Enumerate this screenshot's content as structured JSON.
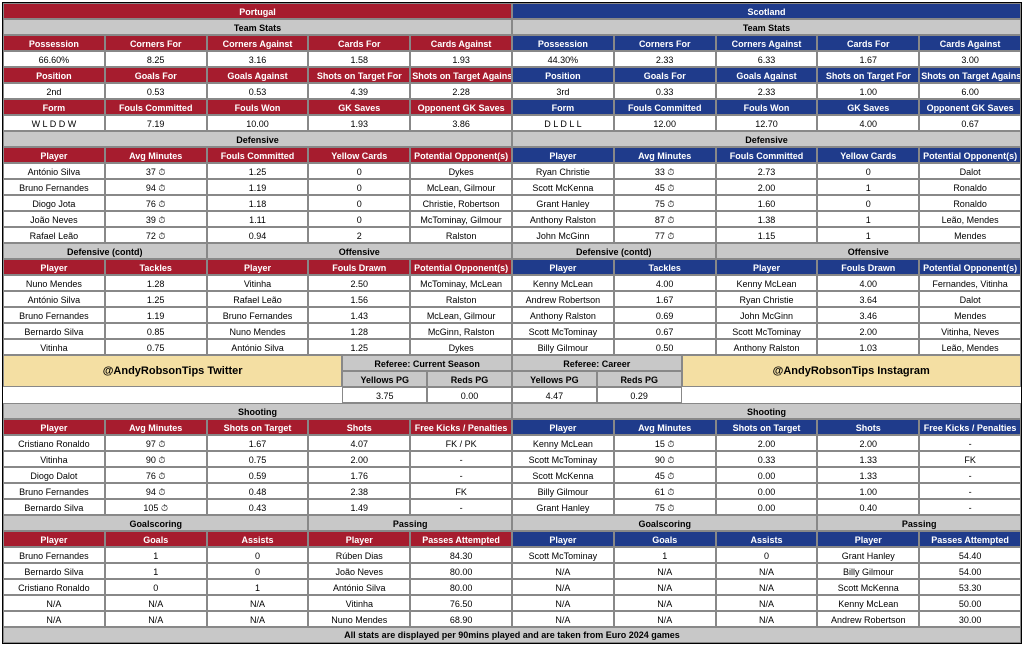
{
  "teamA": {
    "name": "Portugal",
    "color": "#a61c2e",
    "stats": {
      "row1_h": [
        "Possession",
        "Corners For",
        "Corners Against",
        "Cards For",
        "Cards Against"
      ],
      "row1_v": [
        "66.60%",
        "8.25",
        "3.16",
        "1.58",
        "1.93"
      ],
      "row2_h": [
        "Position",
        "Goals For",
        "Goals Against",
        "Shots on Target For",
        "Shots on Target Against"
      ],
      "row2_v": [
        "2nd",
        "0.53",
        "0.53",
        "4.39",
        "2.28"
      ],
      "row3_h": [
        "Form",
        "Fouls Committed",
        "Fouls Won",
        "GK Saves",
        "Opponent GK Saves"
      ],
      "row3_v": [
        "W L D D W",
        "7.19",
        "10.00",
        "1.93",
        "3.86"
      ]
    },
    "defensive": [
      [
        "António Silva",
        "37 ⏱",
        "1.25",
        "0",
        "Dykes"
      ],
      [
        "Bruno Fernandes",
        "94 ⏱",
        "1.19",
        "0",
        "McLean, Gilmour"
      ],
      [
        "Diogo Jota",
        "76 ⏱",
        "1.18",
        "0",
        "Christie, Robertson"
      ],
      [
        "João Neves",
        "39 ⏱",
        "1.11",
        "0",
        "McTominay, Gilmour"
      ],
      [
        "Rafael Leão",
        "72 ⏱",
        "0.94",
        "2",
        "Ralston"
      ]
    ],
    "tackles": [
      [
        "Nuno Mendes",
        "1.28"
      ],
      [
        "António Silva",
        "1.25"
      ],
      [
        "Bruno Fernandes",
        "1.19"
      ],
      [
        "Bernardo Silva",
        "0.85"
      ],
      [
        "Vitinha",
        "0.75"
      ]
    ],
    "offensive": [
      [
        "Vitinha",
        "2.50",
        "McTominay, McLean"
      ],
      [
        "Rafael Leão",
        "1.56",
        "Ralston"
      ],
      [
        "Bruno Fernandes",
        "1.43",
        "McLean, Gilmour"
      ],
      [
        "Nuno Mendes",
        "1.28",
        "McGinn, Ralston"
      ],
      [
        "António Silva",
        "1.25",
        "Dykes"
      ]
    ],
    "shooting": [
      [
        "Cristiano Ronaldo",
        "97 ⏱",
        "1.67",
        "4.07",
        "FK / PK"
      ],
      [
        "Vitinha",
        "90 ⏱",
        "0.75",
        "2.00",
        "-"
      ],
      [
        "Diogo Dalot",
        "76 ⏱",
        "0.59",
        "1.76",
        "-"
      ],
      [
        "Bruno Fernandes",
        "94 ⏱",
        "0.48",
        "2.38",
        "FK"
      ],
      [
        "Bernardo Silva",
        "105 ⏱",
        "0.43",
        "1.49",
        "-"
      ]
    ],
    "goals": [
      [
        "Bruno Fernandes",
        "1",
        "0"
      ],
      [
        "Bernardo Silva",
        "1",
        "0"
      ],
      [
        "Cristiano Ronaldo",
        "0",
        "1"
      ],
      [
        "N/A",
        "N/A",
        "N/A"
      ],
      [
        "N/A",
        "N/A",
        "N/A"
      ]
    ],
    "passing": [
      [
        "Rúben Dias",
        "84.30"
      ],
      [
        "João Neves",
        "80.00"
      ],
      [
        "António Silva",
        "80.00"
      ],
      [
        "Vitinha",
        "76.50"
      ],
      [
        "Nuno Mendes",
        "68.90"
      ]
    ]
  },
  "teamB": {
    "name": "Scotland",
    "color": "#1f3b8b",
    "stats": {
      "row1_h": [
        "Possession",
        "Corners For",
        "Corners Against",
        "Cards For",
        "Cards Against"
      ],
      "row1_v": [
        "44.30%",
        "2.33",
        "6.33",
        "1.67",
        "3.00"
      ],
      "row2_h": [
        "Position",
        "Goals For",
        "Goals Against",
        "Shots on Target For",
        "Shots on Target Against"
      ],
      "row2_v": [
        "3rd",
        "0.33",
        "2.33",
        "1.00",
        "6.00"
      ],
      "row3_h": [
        "Form",
        "Fouls Committed",
        "Fouls Won",
        "GK Saves",
        "Opponent GK Saves"
      ],
      "row3_v": [
        "D L D L L",
        "12.00",
        "12.70",
        "4.00",
        "0.67"
      ]
    },
    "defensive": [
      [
        "Ryan Christie",
        "33 ⏱",
        "2.73",
        "0",
        "Dalot"
      ],
      [
        "Scott McKenna",
        "45 ⏱",
        "2.00",
        "1",
        "Ronaldo"
      ],
      [
        "Grant Hanley",
        "75 ⏱",
        "1.60",
        "0",
        "Ronaldo"
      ],
      [
        "Anthony Ralston",
        "87 ⏱",
        "1.38",
        "1",
        "Leão, Mendes"
      ],
      [
        "John McGinn",
        "77 ⏱",
        "1.15",
        "1",
        "Mendes"
      ]
    ],
    "tackles": [
      [
        "Kenny McLean",
        "4.00"
      ],
      [
        "Andrew Robertson",
        "1.67"
      ],
      [
        "Anthony Ralston",
        "0.69"
      ],
      [
        "Scott McTominay",
        "0.67"
      ],
      [
        "Billy Gilmour",
        "0.50"
      ]
    ],
    "offensive": [
      [
        "Kenny McLean",
        "4.00",
        "Fernandes, Vitinha"
      ],
      [
        "Ryan Christie",
        "3.64",
        "Dalot"
      ],
      [
        "John McGinn",
        "3.46",
        "Mendes"
      ],
      [
        "Scott McTominay",
        "2.00",
        "Vitinha, Neves"
      ],
      [
        "Anthony Ralston",
        "1.03",
        "Leão, Mendes"
      ]
    ],
    "shooting": [
      [
        "Kenny McLean",
        "15 ⏱",
        "2.00",
        "2.00",
        "-"
      ],
      [
        "Scott McTominay",
        "90 ⏱",
        "0.33",
        "1.33",
        "FK"
      ],
      [
        "Scott McKenna",
        "45 ⏱",
        "0.00",
        "1.33",
        "-"
      ],
      [
        "Billy Gilmour",
        "61 ⏱",
        "0.00",
        "1.00",
        "-"
      ],
      [
        "Grant Hanley",
        "75 ⏱",
        "0.00",
        "0.40",
        "-"
      ]
    ],
    "goals": [
      [
        "Scott McTominay",
        "1",
        "0"
      ],
      [
        "N/A",
        "N/A",
        "N/A"
      ],
      [
        "N/A",
        "N/A",
        "N/A"
      ],
      [
        "N/A",
        "N/A",
        "N/A"
      ],
      [
        "N/A",
        "N/A",
        "N/A"
      ]
    ],
    "passing": [
      [
        "Grant Hanley",
        "54.40"
      ],
      [
        "Billy Gilmour",
        "54.00"
      ],
      [
        "Scott McKenna",
        "53.30"
      ],
      [
        "Kenny McLean",
        "50.00"
      ],
      [
        "Andrew Robertson",
        "30.00"
      ]
    ]
  },
  "labels": {
    "teamStats": "Team Stats",
    "defensive": "Defensive",
    "defensiveContd": "Defensive (contd)",
    "offensive": "Offensive",
    "player": "Player",
    "avgMin": "Avg Minutes",
    "foulsC": "Fouls Committed",
    "yellow": "Yellow Cards",
    "potOpp": "Potential Opponent(s)",
    "tackles": "Tackles",
    "foulsD": "Fouls Drawn",
    "shooting": "Shooting",
    "sot": "Shots on Target",
    "shots": "Shots",
    "fkpk": "Free Kicks / Penalties",
    "goalscoring": "Goalscoring",
    "goals": "Goals",
    "assists": "Assists",
    "passing": "Passing",
    "passes": "Passes Attempted",
    "refCurrent": "Referee: Current Season",
    "refCareer": "Referee: Career",
    "yellowsPG": "Yellows PG",
    "redsPG": "Reds PG"
  },
  "ref": {
    "current": [
      "3.75",
      "0.00"
    ],
    "career": [
      "4.47",
      "0.29"
    ]
  },
  "promo": {
    "twitter": "@AndyRobsonTips Twitter",
    "instagram": "@AndyRobsonTips Instagram"
  },
  "footer": "All stats are displayed per 90mins played and are taken from Euro 2024 games"
}
